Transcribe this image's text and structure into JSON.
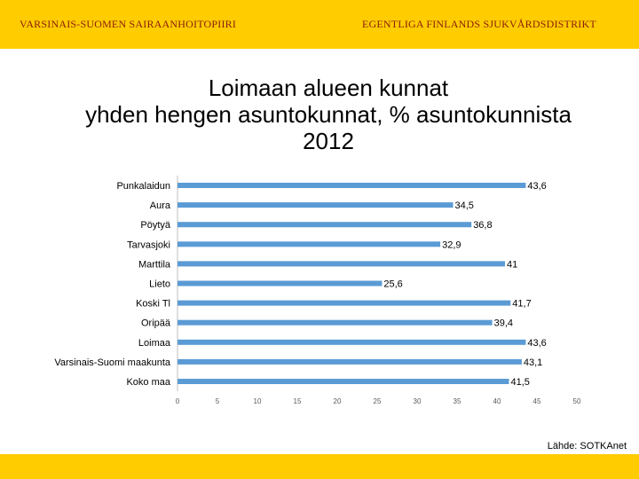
{
  "header": {
    "left_org": "VARSINAIS-SUOMEN SAIRAANHOITOPIIRI",
    "right_org": "EGENTLIGA FINLANDS SJUKVÅRDSDISTRIKT"
  },
  "chart_data": {
    "type": "bar",
    "orientation": "horizontal",
    "title_lines": [
      "Loimaan alueen kunnat",
      "yhden hengen asuntokunnat, % asuntokunnista",
      "2012"
    ],
    "categories": [
      "Punkalaidun",
      "Aura",
      "Pöytyä",
      "Tarvasjoki",
      "Marttila",
      "Lieto",
      "Koski Tl",
      "Oripää",
      "Loimaa",
      "Varsinais-Suomi maakunta",
      "Koko maa"
    ],
    "values": [
      43.6,
      34.5,
      36.8,
      32.9,
      41,
      25.6,
      41.7,
      39.4,
      43.6,
      43.1,
      41.5
    ],
    "value_labels": [
      "43,6",
      "34,5",
      "36,8",
      "32,9",
      "41",
      "25,6",
      "41,7",
      "39,4",
      "43,6",
      "43,1",
      "41,5"
    ],
    "xlim": [
      0,
      50
    ],
    "x_ticks": [
      0,
      5,
      10,
      15,
      20,
      25,
      30,
      35,
      40,
      45,
      50
    ],
    "grid": false,
    "legend": "none",
    "bar_color": "#5b9bd5"
  },
  "source": "Lähde: SOTKAnet"
}
